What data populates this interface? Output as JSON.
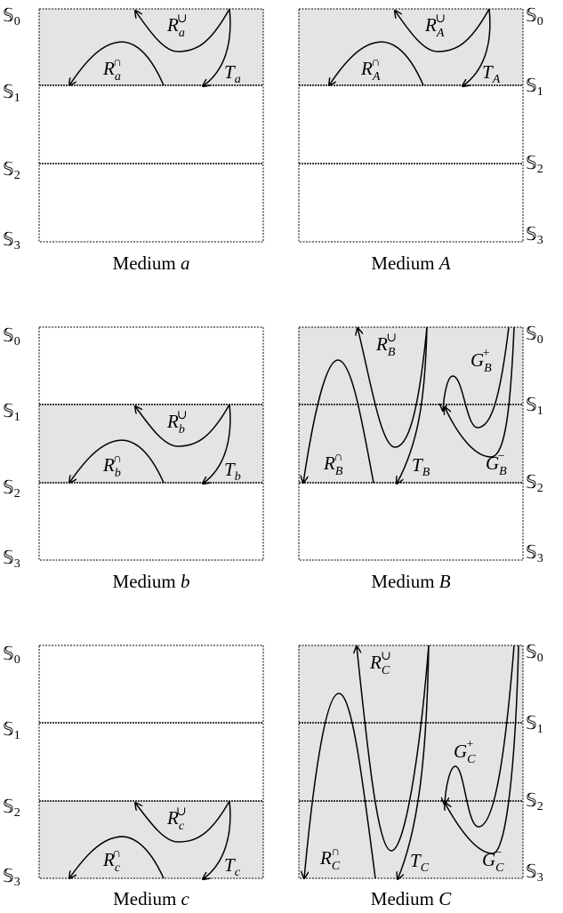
{
  "surfaces": [
    "𝕊0",
    "𝕊1",
    "𝕊2",
    "𝕊3"
  ],
  "surface_prefix": "𝕊",
  "surface_indices": [
    "0",
    "1",
    "2",
    "3"
  ],
  "panels": [
    {
      "id": "a",
      "caption": "Medium a",
      "caption_word": "Medium",
      "caption_symbol": "a",
      "active_layer": 1,
      "labels": {
        "r_cup": "R",
        "r_cup_sub": "a",
        "r_cup_sup": "∪",
        "r_cap": "R",
        "r_cap_sub": "a",
        "r_cap_sup": "∩",
        "t": "T",
        "t_sub": "a"
      }
    },
    {
      "id": "A",
      "caption": "Medium A",
      "caption_word": "Medium",
      "caption_symbol": "A",
      "active_layer": 1,
      "labels": {
        "r_cup": "R",
        "r_cup_sub": "A",
        "r_cup_sup": "∪",
        "r_cap": "R",
        "r_cap_sub": "A",
        "r_cap_sup": "∩",
        "t": "T",
        "t_sub": "A"
      }
    },
    {
      "id": "b",
      "caption": "Medium b",
      "caption_word": "Medium",
      "caption_symbol": "b",
      "active_layer": 2,
      "labels": {
        "r_cup": "R",
        "r_cup_sub": "b",
        "r_cup_sup": "∪",
        "r_cap": "R",
        "r_cap_sub": "b",
        "r_cap_sup": "∩",
        "t": "T",
        "t_sub": "b"
      }
    },
    {
      "id": "B",
      "caption": "Medium B",
      "caption_word": "Medium",
      "caption_symbol": "B",
      "active_layer": 2,
      "labels": {
        "r_cup": "R",
        "r_cup_sub": "B",
        "r_cup_sup": "∪",
        "r_cap": "R",
        "r_cap_sub": "B",
        "r_cap_sup": "∩",
        "t": "T",
        "t_sub": "B",
        "g_plus": "G",
        "g_plus_sub": "B",
        "g_plus_sup": "+",
        "g_minus": "G",
        "g_minus_sub": "B",
        "g_minus_sup": "−"
      }
    },
    {
      "id": "c",
      "caption": "Medium c",
      "caption_word": "Medium",
      "caption_symbol": "c",
      "active_layer": 3,
      "labels": {
        "r_cup": "R",
        "r_cup_sub": "c",
        "r_cup_sup": "∪",
        "r_cap": "R",
        "r_cap_sub": "c",
        "r_cap_sup": "∩",
        "t": "T",
        "t_sub": "c"
      }
    },
    {
      "id": "C",
      "caption": "Medium C",
      "caption_word": "Medium",
      "caption_symbol": "C",
      "active_layer": 3,
      "labels": {
        "r_cup": "R",
        "r_cup_sub": "C",
        "r_cup_sup": "∪",
        "r_cap": "R",
        "r_cap_sub": "C",
        "r_cap_sup": "∩",
        "t": "T",
        "t_sub": "C",
        "g_plus": "G",
        "g_plus_sub": "C",
        "g_plus_sup": "+",
        "g_minus": "G",
        "g_minus_sub": "C",
        "g_minus_sup": "−"
      }
    }
  ],
  "colors": {
    "layer_fill": "#e4e4e4",
    "line": "#000000",
    "background": "#ffffff"
  }
}
